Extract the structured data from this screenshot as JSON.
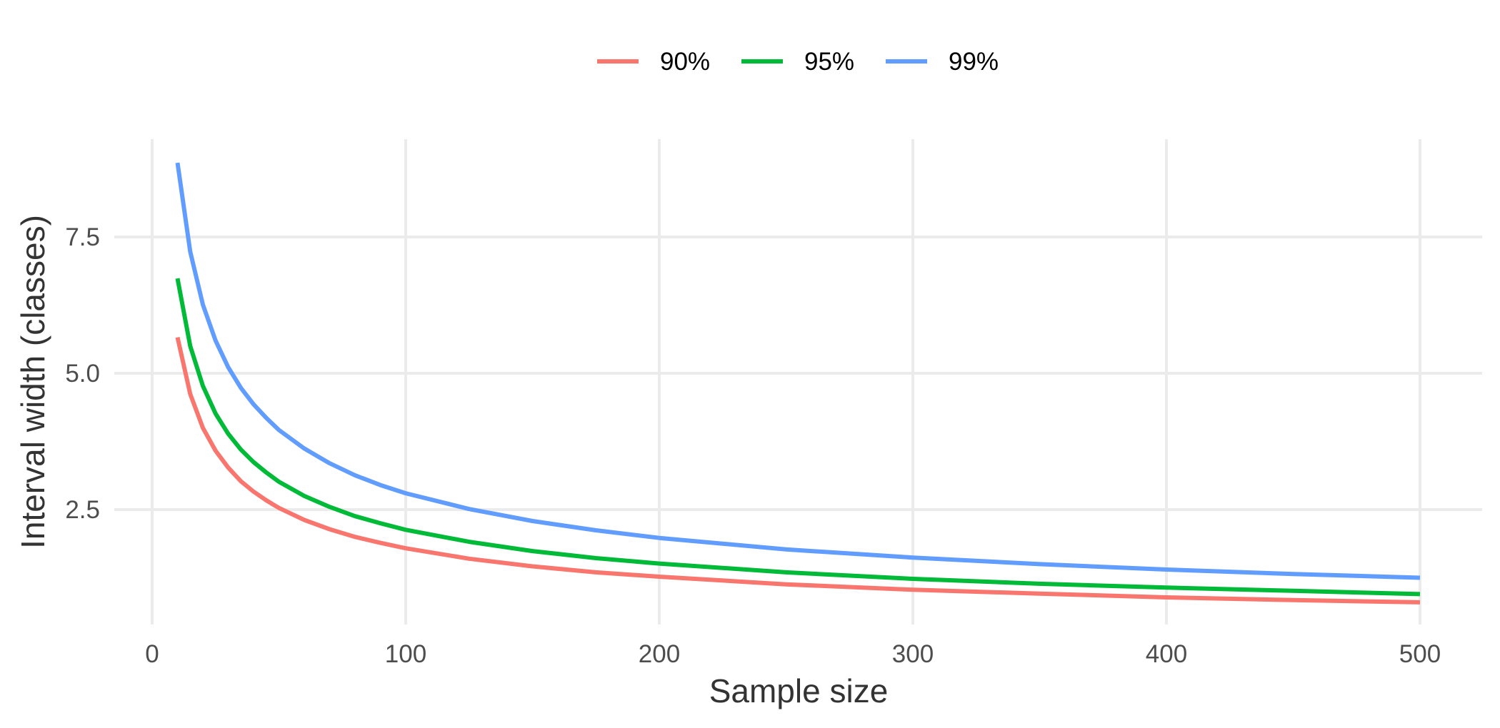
{
  "chart_data": {
    "type": "line",
    "xlabel": "Sample size",
    "ylabel": "Interval width (classes)",
    "xlim": [
      0,
      500
    ],
    "ylim": [
      0.65,
      9.0
    ],
    "x_ticks": [
      0,
      100,
      200,
      300,
      400,
      500
    ],
    "x_tick_labels": [
      "0",
      "100",
      "200",
      "300",
      "400",
      "500"
    ],
    "y_ticks": [
      2.5,
      5.0,
      7.5
    ],
    "y_tick_labels": [
      "2.5",
      "5.0",
      "7.5"
    ],
    "grid": true,
    "legend_position": "top",
    "x": [
      10,
      15,
      20,
      25,
      30,
      35,
      40,
      45,
      50,
      60,
      70,
      80,
      90,
      100,
      125,
      150,
      175,
      200,
      250,
      300,
      350,
      400,
      450,
      500
    ],
    "series": [
      {
        "name": "90%",
        "color": "#F8766D",
        "values": [
          5.66,
          4.62,
          4.0,
          3.58,
          3.27,
          3.02,
          2.83,
          2.67,
          2.53,
          2.31,
          2.14,
          2.0,
          1.89,
          1.79,
          1.6,
          1.46,
          1.35,
          1.27,
          1.13,
          1.03,
          0.96,
          0.89,
          0.84,
          0.8
        ]
      },
      {
        "name": "95%",
        "color": "#00BA38",
        "values": [
          6.74,
          5.5,
          4.77,
          4.26,
          3.89,
          3.6,
          3.37,
          3.18,
          3.01,
          2.75,
          2.55,
          2.38,
          2.25,
          2.13,
          1.91,
          1.74,
          1.61,
          1.51,
          1.35,
          1.23,
          1.14,
          1.07,
          1.01,
          0.95
        ]
      },
      {
        "name": "99%",
        "color": "#619CFF",
        "values": [
          8.86,
          7.23,
          6.26,
          5.6,
          5.11,
          4.73,
          4.43,
          4.18,
          3.96,
          3.62,
          3.35,
          3.13,
          2.95,
          2.8,
          2.51,
          2.29,
          2.12,
          1.98,
          1.77,
          1.62,
          1.5,
          1.4,
          1.32,
          1.25
        ]
      }
    ]
  }
}
